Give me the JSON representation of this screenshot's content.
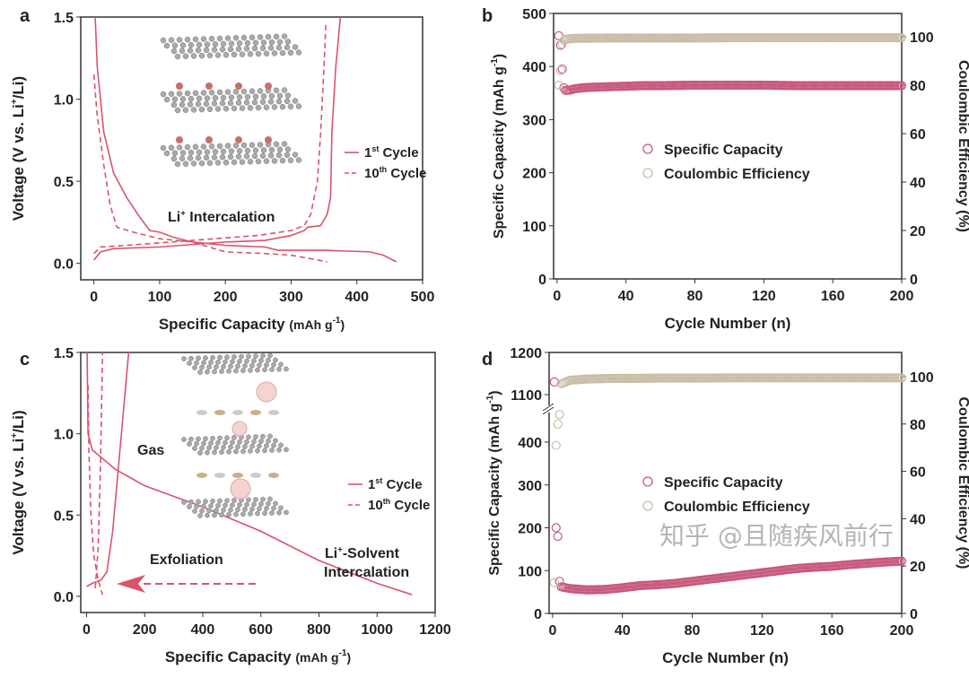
{
  "colors": {
    "curve": "#d9546b",
    "capacity": "#c8587a",
    "ce": "#c9bda6",
    "axis": "#333333"
  },
  "watermark": "知乎 @且随疾风前行",
  "chart_data": [
    {
      "panel": "a",
      "type": "line",
      "xlabel": "Specific Capacity (mAh g-1)",
      "ylabel": "Voltage (V vs. Li+/Li)",
      "xlim": [
        -20,
        500
      ],
      "ylim": [
        -0.1,
        1.5
      ],
      "xticks": [
        "0",
        "100",
        "200",
        "300",
        "400",
        "500"
      ],
      "yticks": [
        "0.0",
        "0.5",
        "1.0",
        "1.5"
      ],
      "annotation": "Li+ Intercalation",
      "legend_position": "right",
      "series": [
        {
          "name": "1st Cycle",
          "style": "solid",
          "segments": [
            [
              [
                2,
                1.5
              ],
              [
                5,
                1.2
              ],
              [
                15,
                0.8
              ],
              [
                30,
                0.55
              ],
              [
                50,
                0.4
              ],
              [
                70,
                0.28
              ],
              [
                85,
                0.2
              ],
              [
                100,
                0.19
              ],
              [
                120,
                0.16
              ],
              [
                150,
                0.13
              ],
              [
                200,
                0.11
              ],
              [
                260,
                0.1
              ],
              [
                280,
                0.08
              ],
              [
                350,
                0.08
              ],
              [
                420,
                0.07
              ],
              [
                440,
                0.05
              ],
              [
                460,
                0.01
              ]
            ],
            [
              [
                0,
                0.02
              ],
              [
                10,
                0.07
              ],
              [
                30,
                0.09
              ],
              [
                100,
                0.1
              ],
              [
                200,
                0.13
              ],
              [
                260,
                0.14
              ],
              [
                300,
                0.17
              ],
              [
                320,
                0.2
              ],
              [
                325,
                0.22
              ],
              [
                345,
                0.23
              ],
              [
                355,
                0.3
              ],
              [
                360,
                0.4
              ],
              [
                362,
                0.8
              ],
              [
                368,
                1.2
              ],
              [
                375,
                1.5
              ]
            ]
          ]
        },
        {
          "name": "10th Cycle",
          "style": "dashed",
          "segments": [
            [
              [
                0,
                1.15
              ],
              [
                5,
                0.9
              ],
              [
                15,
                0.6
              ],
              [
                25,
                0.35
              ],
              [
                35,
                0.22
              ],
              [
                60,
                0.19
              ],
              [
                100,
                0.15
              ],
              [
                150,
                0.13
              ],
              [
                200,
                0.07
              ],
              [
                260,
                0.06
              ],
              [
                300,
                0.05
              ],
              [
                355,
                0.01
              ]
            ],
            [
              [
                0,
                0.06
              ],
              [
                10,
                0.1
              ],
              [
                50,
                0.11
              ],
              [
                150,
                0.14
              ],
              [
                250,
                0.17
              ],
              [
                300,
                0.2
              ],
              [
                320,
                0.23
              ],
              [
                330,
                0.3
              ],
              [
                340,
                0.5
              ],
              [
                345,
                0.8
              ],
              [
                350,
                1.2
              ],
              [
                353,
                1.47
              ]
            ]
          ]
        }
      ]
    },
    {
      "panel": "b",
      "type": "scatter",
      "xlabel": "Cycle Number (n)",
      "ylabel": "Specific Capacity (mAh g-1)",
      "y2label": "Coulombic Efficiency (%)",
      "xlim": [
        -2,
        200
      ],
      "ylim": [
        0,
        500
      ],
      "y2lim": [
        0,
        110
      ],
      "xticks": [
        "0",
        "40",
        "80",
        "120",
        "160",
        "200"
      ],
      "yticks": [
        "0",
        "100",
        "200",
        "300",
        "400",
        "500"
      ],
      "y2ticks": [
        "0",
        "20",
        "40",
        "60",
        "80",
        "100"
      ],
      "legend_position": "center",
      "series": [
        {
          "name": "Specific Capacity",
          "x": [
            1,
            2,
            3,
            4,
            5,
            8,
            10,
            15,
            20,
            30,
            40,
            50,
            60,
            80,
            100,
            120,
            140,
            160,
            180,
            200
          ],
          "y": [
            458,
            440,
            395,
            360,
            355,
            356,
            358,
            360,
            361,
            362,
            363,
            364,
            364,
            365,
            365,
            365,
            364,
            364,
            364,
            364
          ]
        },
        {
          "name": "Coulombic Efficiency",
          "axis": "right",
          "x": [
            1,
            2,
            3,
            4,
            5,
            8,
            10,
            15,
            20,
            30,
            40,
            50,
            60,
            80,
            100,
            120,
            140,
            160,
            180,
            200
          ],
          "y": [
            80,
            86,
            97,
            98.5,
            99,
            99.2,
            99.3,
            99.4,
            99.4,
            99.5,
            99.5,
            99.5,
            99.5,
            99.5,
            99.6,
            99.6,
            99.6,
            99.6,
            99.6,
            99.6
          ]
        }
      ]
    },
    {
      "panel": "c",
      "type": "line",
      "xlabel": "Specific Capacity (mAh g-1)",
      "ylabel": "Voltage (V vs. Li+/Li)",
      "xlim": [
        -20,
        1200
      ],
      "ylim": [
        -0.1,
        1.5
      ],
      "xticks": [
        "0",
        "200",
        "400",
        "600",
        "800",
        "1000",
        "1200"
      ],
      "yticks": [
        "0.0",
        "0.5",
        "1.0",
        "1.5"
      ],
      "annotations": [
        "Gas",
        "Exfoliation",
        "Li+-Solvent",
        "Intercalation"
      ],
      "legend_position": "right",
      "series": [
        {
          "name": "1st Cycle",
          "style": "solid",
          "segments": [
            [
              [
                2,
                1.5
              ],
              [
                5,
                1.0
              ],
              [
                20,
                0.9
              ],
              [
                100,
                0.78
              ],
              [
                200,
                0.68
              ],
              [
                400,
                0.55
              ],
              [
                600,
                0.4
              ],
              [
                800,
                0.22
              ],
              [
                1000,
                0.08
              ],
              [
                1120,
                0.01
              ]
            ],
            [
              [
                0,
                0.06
              ],
              [
                20,
                0.08
              ],
              [
                50,
                0.1
              ],
              [
                70,
                0.15
              ],
              [
                90,
                0.4
              ],
              [
                110,
                0.8
              ],
              [
                130,
                1.2
              ],
              [
                145,
                1.5
              ]
            ]
          ]
        },
        {
          "name": "10th Cycle",
          "style": "dashed",
          "segments": [
            [
              [
                5,
                1.3
              ],
              [
                8,
                0.9
              ],
              [
                15,
                0.5
              ],
              [
                25,
                0.25
              ],
              [
                40,
                0.1
              ],
              [
                55,
                0.01
              ]
            ],
            [
              [
                30,
                0.05
              ],
              [
                40,
                0.3
              ],
              [
                48,
                0.8
              ],
              [
                55,
                1.5
              ]
            ]
          ]
        }
      ]
    },
    {
      "panel": "d",
      "type": "scatter",
      "xlabel": "Cycle Number (n)",
      "ylabel": "Specific Capacity (mAh g-1)",
      "y2label": "Coulombic Efficiency (%)",
      "xlim": [
        -2,
        200
      ],
      "ylim": [
        0,
        1200
      ],
      "axis_break": [
        480,
        1100
      ],
      "y2lim": [
        0,
        110
      ],
      "xticks": [
        "0",
        "40",
        "80",
        "120",
        "160",
        "200"
      ],
      "yticks": [
        "0",
        "100",
        "200",
        "300",
        "400",
        "1100",
        "1200"
      ],
      "y2ticks": [
        "0",
        "20",
        "40",
        "60",
        "80",
        "100"
      ],
      "legend_position": "center",
      "series": [
        {
          "name": "Specific Capacity",
          "x": [
            1,
            2,
            3,
            4,
            5,
            10,
            20,
            30,
            40,
            50,
            60,
            70,
            80,
            90,
            100,
            110,
            120,
            130,
            140,
            150,
            160,
            170,
            180,
            190,
            200
          ],
          "y": [
            1130,
            200,
            180,
            75,
            62,
            58,
            55,
            56,
            60,
            65,
            67,
            70,
            75,
            80,
            85,
            90,
            95,
            100,
            105,
            108,
            110,
            114,
            117,
            120,
            122
          ]
        },
        {
          "name": "Coulombic Efficiency",
          "axis": "right",
          "x": [
            1,
            2,
            3,
            4,
            5,
            10,
            20,
            30,
            40,
            50,
            60,
            70,
            80,
            90,
            100,
            110,
            120,
            130,
            140,
            150,
            160,
            170,
            180,
            190,
            200
          ],
          "y": [
            13,
            71,
            80,
            84,
            97,
            98.5,
            99,
            99.2,
            99.3,
            99.3,
            99.4,
            99.4,
            99.4,
            99.4,
            99.5,
            99.5,
            99.5,
            99.5,
            99.5,
            99.5,
            99.5,
            99.5,
            99.5,
            99.5,
            99.5
          ]
        }
      ]
    }
  ],
  "panel_labels": [
    "a",
    "b",
    "c",
    "d"
  ]
}
